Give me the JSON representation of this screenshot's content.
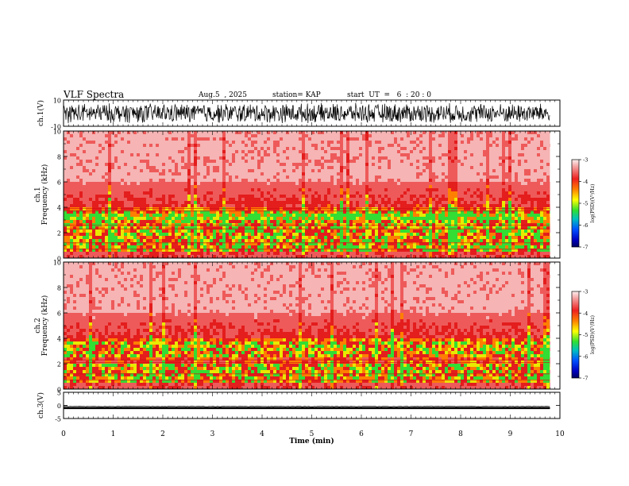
{
  "header": {
    "title": "VLF Spectra",
    "date": "Aug.5  , 2025",
    "station": "station= KAP",
    "start": "start  UT  =   6  : 20 : 0"
  },
  "chart_data": [
    {
      "type": "line",
      "name": "ch1-waveform",
      "ylabel": "ch.1(V)",
      "ylim": [
        -10,
        10
      ],
      "yticks": [
        "10",
        "-10"
      ],
      "xlim": [
        0,
        10
      ],
      "signal": "noise, amplitude ~ 6 V, ends at 9.8 min"
    },
    {
      "type": "heatmap",
      "name": "ch1-spectrogram",
      "ylabel": "ch.1\nFrequency  (kHz)",
      "ylim": [
        0,
        10
      ],
      "yticks": [
        "0",
        "2",
        "4",
        "6",
        "8",
        "10"
      ],
      "xlim": [
        0,
        10
      ],
      "colorbar": {
        "label": "log(PSD)(V²/Hz)",
        "range": [
          -7,
          -3
        ],
        "ticks": [
          "-3",
          "-4",
          "-5",
          "-6",
          "-7"
        ]
      }
    },
    {
      "type": "heatmap",
      "name": "ch2-spectrogram",
      "ylabel": "ch.2\nFrequency  (kHz)",
      "ylim": [
        0,
        10
      ],
      "yticks": [
        "0",
        "2",
        "4",
        "6",
        "8",
        "10"
      ],
      "xlim": [
        0,
        10
      ],
      "colorbar": {
        "label": "log(PSD)(V²/Hz)",
        "range": [
          -7,
          -3
        ],
        "ticks": [
          "-3",
          "-4",
          "-5",
          "-6",
          "-7"
        ]
      }
    },
    {
      "type": "line",
      "name": "ch3-waveform",
      "ylabel": "ch.3(V)",
      "ylim": [
        -5,
        5
      ],
      "yticks": [
        "5",
        "0",
        "-5"
      ],
      "xlim": [
        0,
        10
      ],
      "signal": "flat band near -1 V"
    }
  ],
  "xaxis": {
    "label": "Time  (min)",
    "ticks": [
      "0",
      "1",
      "2",
      "3",
      "4",
      "5",
      "6",
      "7",
      "8",
      "9",
      "10"
    ]
  }
}
